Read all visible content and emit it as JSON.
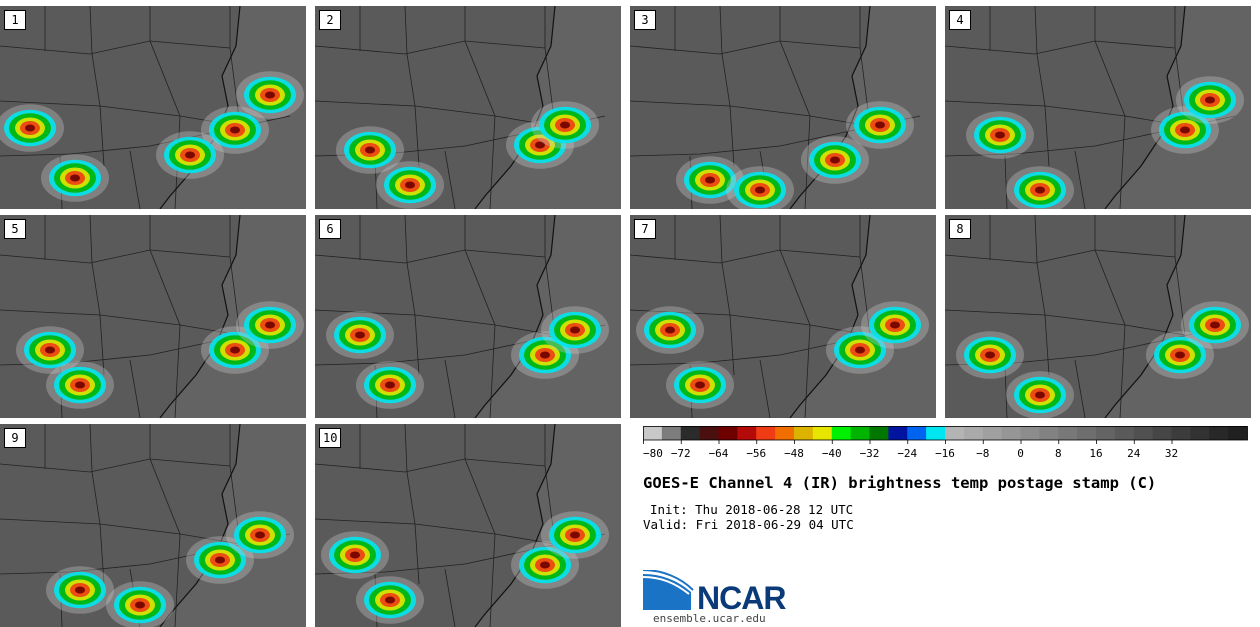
{
  "panels": [
    "1",
    "2",
    "3",
    "4",
    "5",
    "6",
    "7",
    "8",
    "9",
    "10"
  ],
  "colorbar": {
    "colors": [
      "#c8c8c8",
      "#7d7d7d",
      "#2b2b2b",
      "#4a1010",
      "#6e0000",
      "#b40a0a",
      "#f03c14",
      "#f06e00",
      "#dcb400",
      "#e6e600",
      "#00f000",
      "#00b400",
      "#007800",
      "#0014a0",
      "#0064f0",
      "#00e6f0",
      "#b4b4b4",
      "#aaaaaa",
      "#a0a0a0",
      "#969696",
      "#8c8c8c",
      "#828282",
      "#787878",
      "#6e6e6e",
      "#646464",
      "#5a5a5a",
      "#505050",
      "#464646",
      "#3c3c3c",
      "#323232",
      "#282828",
      "#202020"
    ],
    "ticks": [
      "−80",
      "−72",
      "−64",
      "−56",
      "−48",
      "−40",
      "−32",
      "−24",
      "−16",
      "−8",
      "0",
      "8",
      "16",
      "24",
      "32"
    ]
  },
  "title": "GOES-E Channel 4 (IR) brightness temp postage stamp (C)",
  "init": "Init: Thu 2018-06-28 12 UTC",
  "valid": "Valid: Fri 2018-06-29 04 UTC",
  "logo": {
    "name": "NCAR",
    "url": "ensemble.ucar.edu"
  }
}
